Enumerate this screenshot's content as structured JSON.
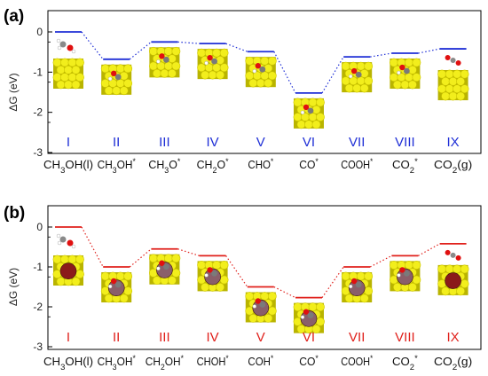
{
  "chart_data": [
    {
      "panel_label": "(a)",
      "type": "energy-profile",
      "ylabel": "ΔG (eV)",
      "ylim": [
        -3,
        0.3
      ],
      "yticks": [
        "0",
        "-1",
        "-2",
        "-3"
      ],
      "line_color": "#1f2fd6",
      "connector_color": "#1f2fd6",
      "states": [
        {
          "index": "I",
          "species": "CH3OH(l)",
          "value": 0.0
        },
        {
          "index": "II",
          "species": "CH3OH*",
          "value": -0.68
        },
        {
          "index": "III",
          "species": "CH3O*",
          "value": -0.25
        },
        {
          "index": "IV",
          "species": "CH2O*",
          "value": -0.29
        },
        {
          "index": "V",
          "species": "CHO*",
          "value": -0.49
        },
        {
          "index": "VI",
          "species": "CO*",
          "value": -1.52
        },
        {
          "index": "VII",
          "species": "COOH*",
          "value": -0.62
        },
        {
          "index": "VIII",
          "species": "CO2*",
          "value": -0.53
        },
        {
          "index": "IX",
          "species": "CO2(g)",
          "value": -0.42
        }
      ]
    },
    {
      "panel_label": "(b)",
      "type": "energy-profile",
      "ylabel": "ΔG (eV)",
      "ylim": [
        -3,
        0.3
      ],
      "yticks": [
        "0",
        "-1",
        "-2",
        "-3"
      ],
      "line_color": "#e0201b",
      "connector_color": "#e0201b",
      "states": [
        {
          "index": "I",
          "species": "CH3OH(l)",
          "value": 0.0
        },
        {
          "index": "II",
          "species": "CH3OH*",
          "value": -1.0
        },
        {
          "index": "III",
          "species": "CH2OH*",
          "value": -0.55
        },
        {
          "index": "IV",
          "species": "CHOH*",
          "value": -0.72
        },
        {
          "index": "V",
          "species": "COH*",
          "value": -1.5
        },
        {
          "index": "VI",
          "species": "CO*",
          "value": -1.77
        },
        {
          "index": "VII",
          "species": "COOH*",
          "value": -1.0
        },
        {
          "index": "VIII",
          "species": "CO2*",
          "value": -0.72
        },
        {
          "index": "IX",
          "species": "CO2(g)",
          "value": -0.42
        }
      ]
    }
  ]
}
